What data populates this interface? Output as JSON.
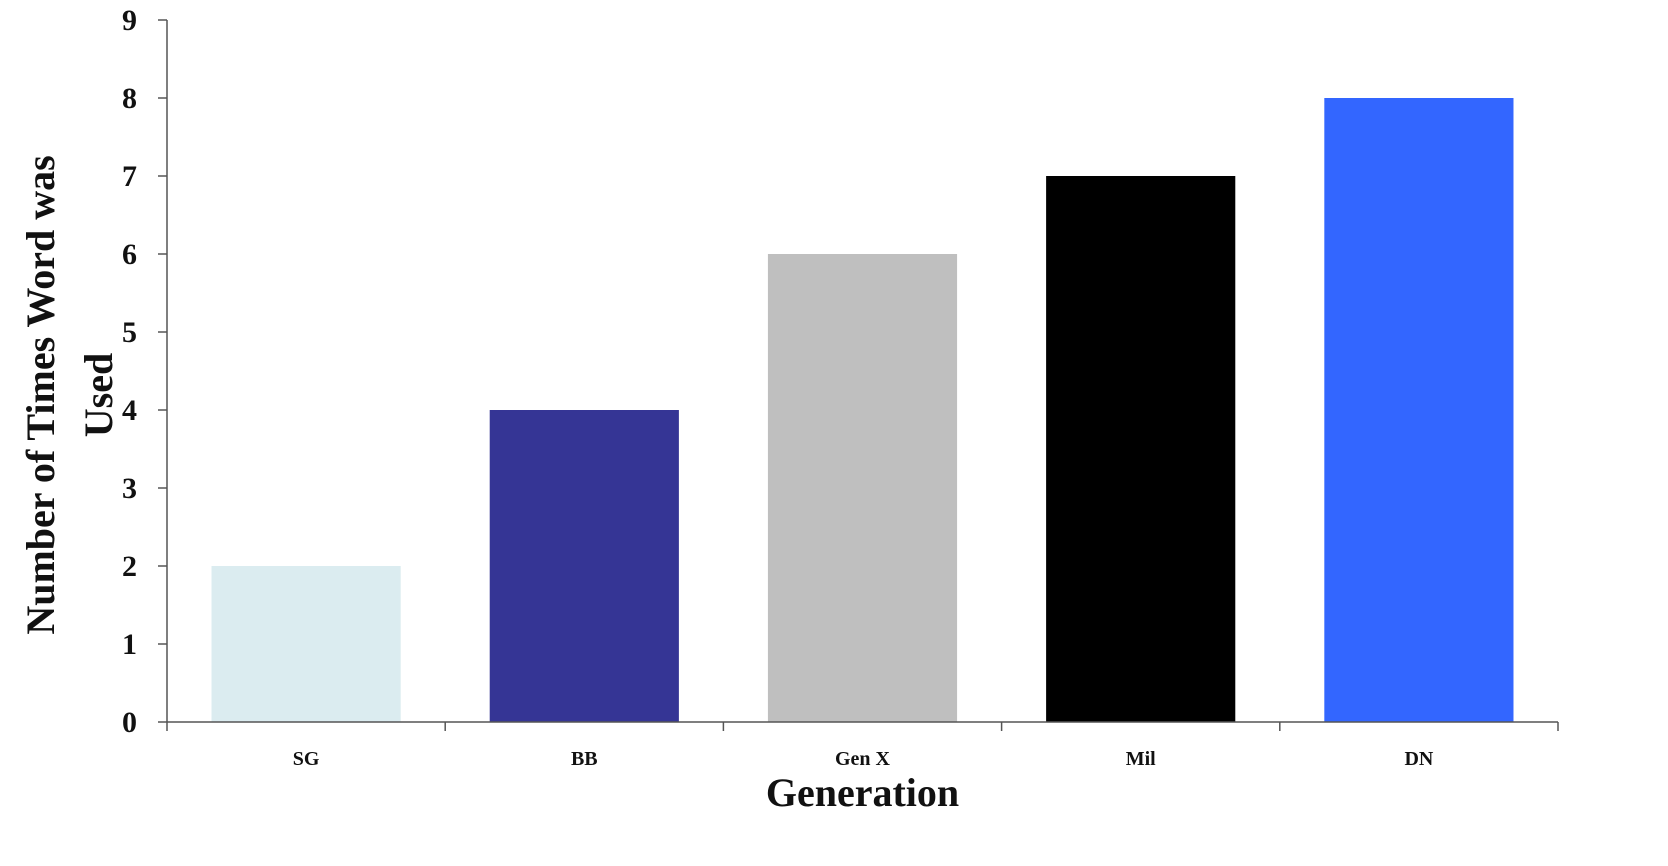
{
  "chart_data": {
    "type": "bar",
    "title": "",
    "xlabel": "Generation",
    "ylabel_lines": [
      "Number of Times Word was",
      "Used"
    ],
    "categories": [
      "SG",
      "BB",
      "Gen X",
      "Mil",
      "DN"
    ],
    "values": [
      2,
      4,
      6,
      7,
      8
    ],
    "colors": [
      "#dbecf0",
      "#353595",
      "#bfbfbf",
      "#000000",
      "#3366ff"
    ],
    "ylim": [
      0,
      9
    ],
    "yticks": [
      0,
      1,
      2,
      3,
      4,
      5,
      6,
      7,
      8,
      9
    ],
    "grid": false,
    "legend": "none"
  }
}
